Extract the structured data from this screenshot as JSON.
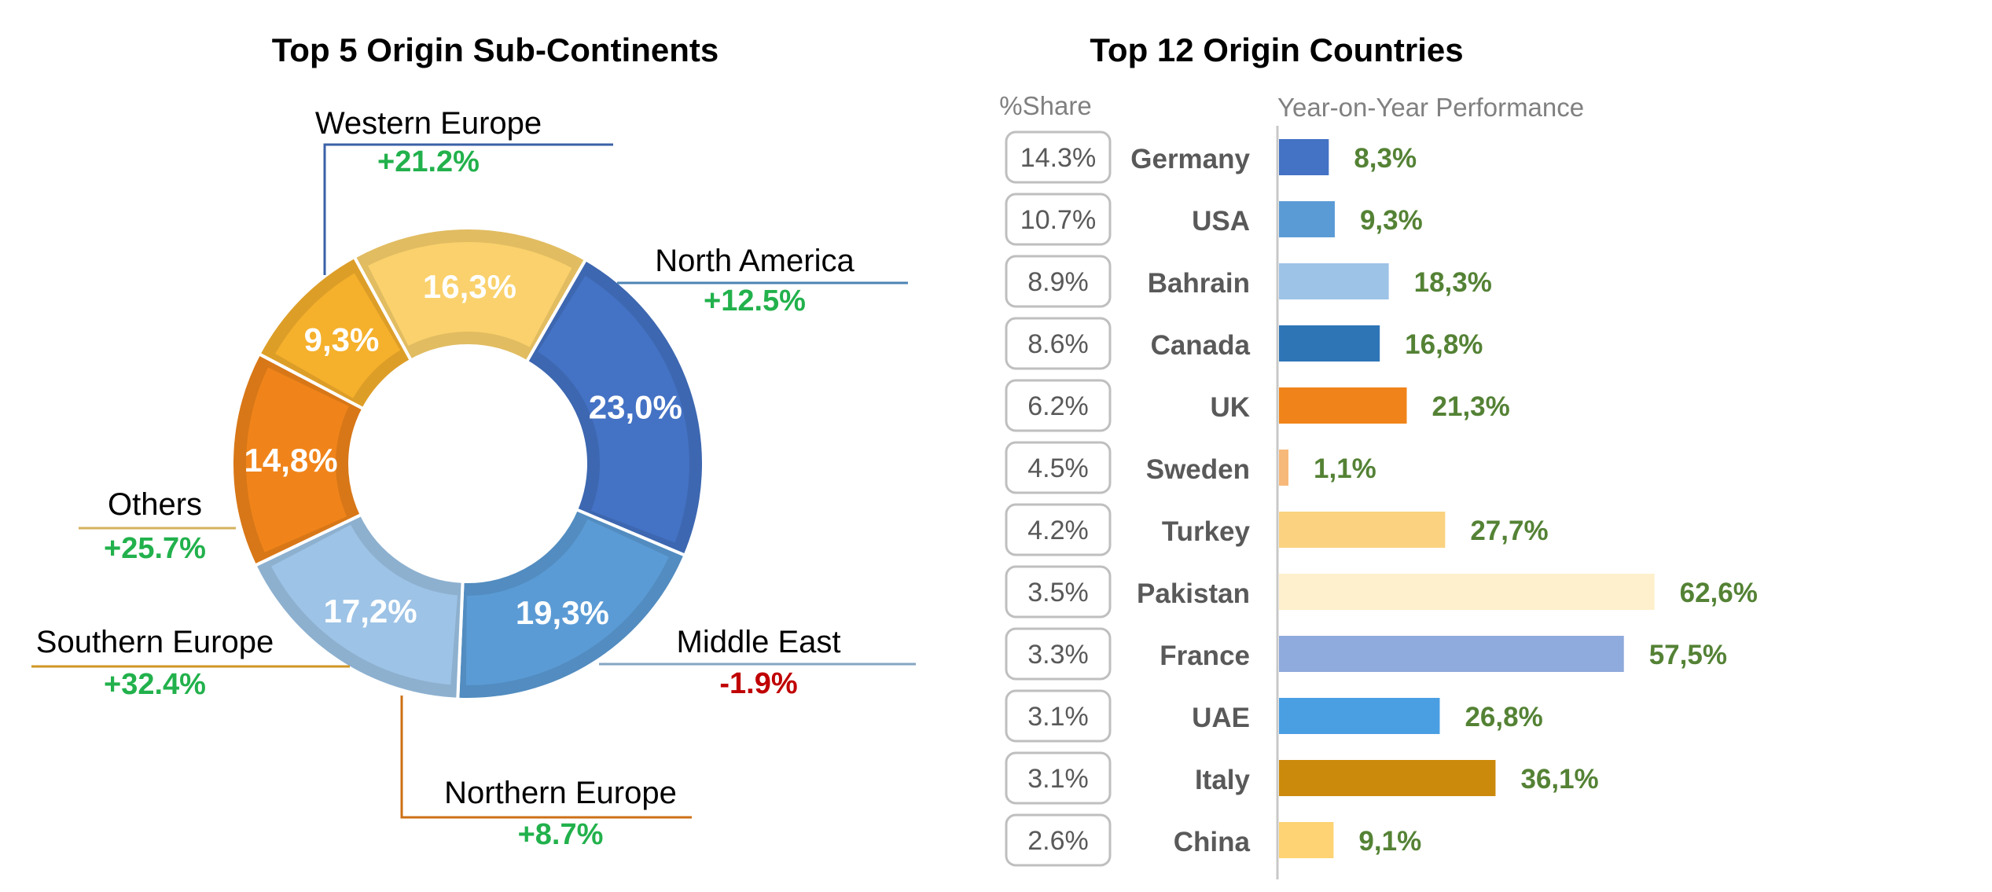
{
  "chart_data": [
    {
      "type": "pie",
      "title": "Top 5 Origin Sub-Continents",
      "slices": [
        {
          "label": "Western Europe",
          "value": 23.0,
          "value_label": "23,0%",
          "change": "+21.2%",
          "color": "#4472c4",
          "change_color": "#22b14c"
        },
        {
          "label": "North America",
          "value": 19.3,
          "value_label": "19,3%",
          "change": "+12.5%",
          "color": "#5b9bd5",
          "change_color": "#22b14c"
        },
        {
          "label": "Middle East",
          "value": 17.2,
          "value_label": "17,2%",
          "change": "-1.9%",
          "color": "#9dc3e6",
          "change_color": "#c00000"
        },
        {
          "label": "Northern Europe",
          "value": 14.8,
          "value_label": "14,8%",
          "change": "+8.7%",
          "color": "#f0841a",
          "change_color": "#22b14c"
        },
        {
          "label": "Southern Europe",
          "value": 9.3,
          "value_label": "9,3%",
          "change": "+32.4%",
          "color": "#f5b02c",
          "change_color": "#22b14c"
        },
        {
          "label": "Others",
          "value": 16.3,
          "value_label": "16,3%",
          "change": "+25.7%",
          "color": "#fad16c",
          "change_color": "#22b14c"
        }
      ]
    },
    {
      "type": "bar",
      "title": "Top 12 Origin Countries",
      "share_header": "%Share",
      "perf_header": "Year-on-Year Performance",
      "categories": [
        "Germany",
        "USA",
        "Bahrain",
        "Canada",
        "UK",
        "Sweden",
        "Turkey",
        "Pakistan",
        "France",
        "UAE",
        "Italy",
        "China"
      ],
      "share_labels": [
        "14.3%",
        "10.7%",
        "8.9%",
        "8.6%",
        "6.2%",
        "4.5%",
        "4.2%",
        "3.5%",
        "3.3%",
        "3.1%",
        "3.1%",
        "2.6%"
      ],
      "values": [
        8.3,
        9.3,
        18.3,
        16.8,
        21.3,
        1.1,
        27.7,
        62.6,
        57.5,
        26.8,
        36.1,
        9.1
      ],
      "value_labels": [
        "8,3%",
        "9,3%",
        "18,3%",
        "16,8%",
        "21,3%",
        "1,1%",
        "27,7%",
        "62,6%",
        "57,5%",
        "26,8%",
        "36,1%",
        "9,1%"
      ],
      "colors": [
        "#4472c4",
        "#5b9bd5",
        "#9dc3e6",
        "#2e75b6",
        "#f0841a",
        "#f7b97a",
        "#fad280",
        "#fef0cc",
        "#8faadc",
        "#4a9fe3",
        "#cc8a0c",
        "#fdd373"
      ],
      "label_color": "#548235"
    }
  ]
}
